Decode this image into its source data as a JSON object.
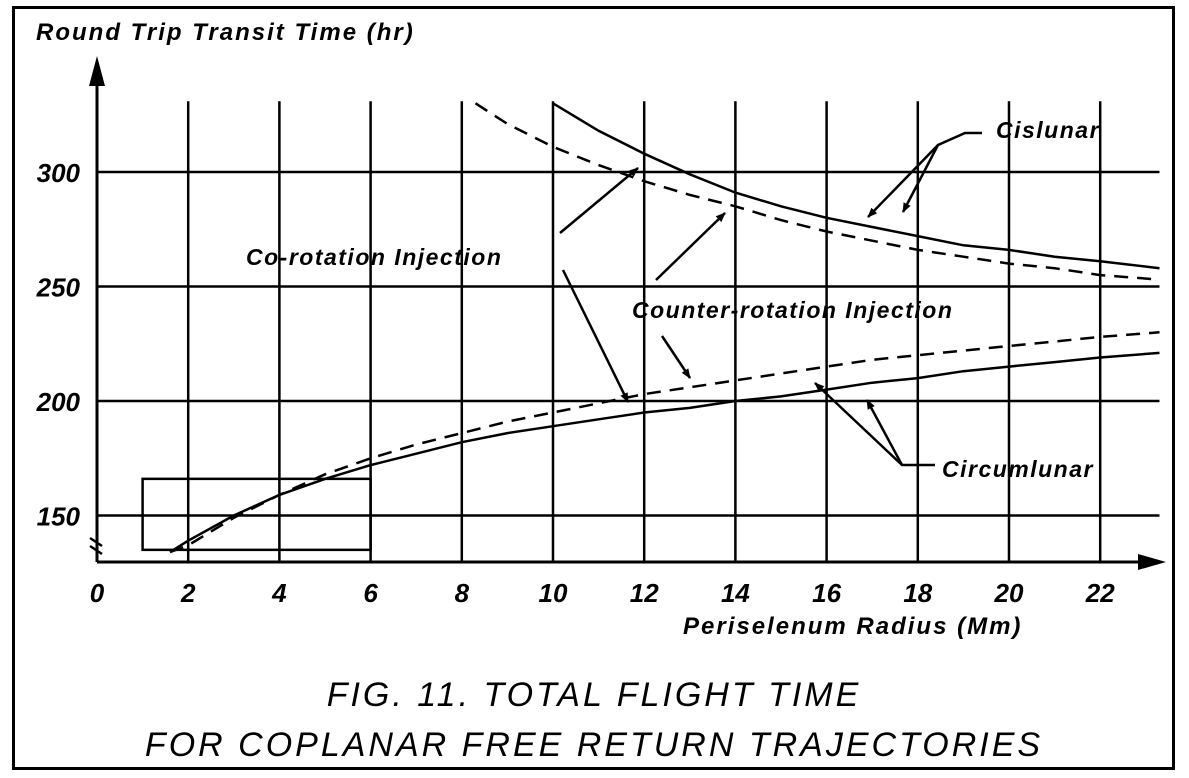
{
  "chart_data": {
    "type": "line",
    "title": "",
    "ylabel": "Round Trip Transit Time (hr)",
    "xlabel": "Periselenum Radius (Mm)",
    "xlim": [
      0,
      23.3
    ],
    "ylim": [
      130,
      330
    ],
    "x_ticks": [
      0,
      2,
      4,
      6,
      8,
      10,
      12,
      14,
      16,
      18,
      20,
      22
    ],
    "y_ticks": [
      150,
      200,
      250,
      300
    ],
    "grid": true,
    "series": [
      {
        "key": "cislunar-co",
        "dashed": false,
        "points": [
          [
            10,
            330
          ],
          [
            11,
            318
          ],
          [
            12,
            308
          ],
          [
            13,
            299
          ],
          [
            14,
            291
          ],
          [
            15,
            285
          ],
          [
            16,
            280
          ],
          [
            17,
            276
          ],
          [
            18,
            272
          ],
          [
            19,
            268
          ],
          [
            20,
            266
          ],
          [
            21,
            263
          ],
          [
            22,
            261
          ],
          [
            23.3,
            258
          ]
        ]
      },
      {
        "key": "cislunar-counter",
        "dashed": false,
        "dash": true,
        "points": [
          [
            8.3,
            330
          ],
          [
            9,
            321
          ],
          [
            10,
            311
          ],
          [
            11,
            303
          ],
          [
            12,
            296
          ],
          [
            13,
            290
          ],
          [
            14,
            285
          ],
          [
            15,
            279
          ],
          [
            16,
            274
          ],
          [
            17,
            270
          ],
          [
            18,
            266
          ],
          [
            19,
            263
          ],
          [
            20,
            260
          ],
          [
            21,
            258
          ],
          [
            22,
            255
          ],
          [
            23.3,
            253
          ]
        ]
      },
      {
        "key": "circumlunar-co",
        "dashed": false,
        "points": [
          [
            1.6,
            134
          ],
          [
            2,
            139
          ],
          [
            3,
            150
          ],
          [
            4,
            159
          ],
          [
            5,
            166
          ],
          [
            6,
            172
          ],
          [
            7,
            177
          ],
          [
            8,
            182
          ],
          [
            9,
            186
          ],
          [
            10,
            189
          ],
          [
            11,
            192
          ],
          [
            12,
            195
          ],
          [
            13,
            197
          ],
          [
            14,
            200
          ],
          [
            15,
            202
          ],
          [
            16,
            205
          ],
          [
            17,
            208
          ],
          [
            18,
            210
          ],
          [
            19,
            213
          ],
          [
            20,
            215
          ],
          [
            21,
            217
          ],
          [
            22,
            219
          ],
          [
            23.3,
            221
          ]
        ]
      },
      {
        "key": "circumlunar-counter",
        "dashed": true,
        "points": [
          [
            1.6,
            134
          ],
          [
            2,
            137
          ],
          [
            3,
            149
          ],
          [
            4,
            159
          ],
          [
            5,
            168
          ],
          [
            6,
            175
          ],
          [
            7,
            181
          ],
          [
            8,
            186
          ],
          [
            9,
            191
          ],
          [
            10,
            195
          ],
          [
            11,
            199
          ],
          [
            12,
            203
          ],
          [
            13,
            206
          ],
          [
            14,
            209
          ],
          [
            15,
            212
          ],
          [
            16,
            215
          ],
          [
            17,
            218
          ],
          [
            18,
            220
          ],
          [
            19,
            222
          ],
          [
            20,
            224
          ],
          [
            21,
            226
          ],
          [
            22,
            228
          ],
          [
            23.3,
            230
          ]
        ]
      }
    ],
    "inset_box": {
      "x": [
        1,
        6
      ],
      "y": [
        135,
        166
      ]
    },
    "annotations": {
      "cislunar": "Cislunar",
      "co_rotation": "Co-rotation Injection",
      "counter_rotation": "Counter-rotation Injection",
      "circumlunar": "Circumlunar"
    }
  },
  "caption": {
    "line1": "FIG. 11.  TOTAL FLIGHT TIME",
    "line2": "FOR COPLANAR FREE RETURN TRAJECTORIES"
  }
}
